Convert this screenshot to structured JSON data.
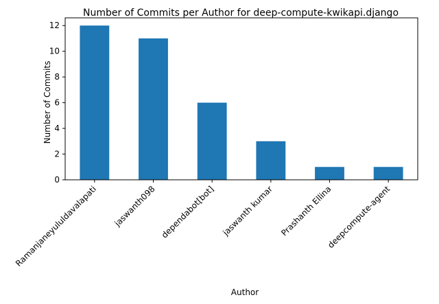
{
  "chart_data": {
    "type": "bar",
    "title": "Number of Commits per Author for deep-compute-kwikapi.django",
    "xlabel": "Author",
    "ylabel": "Number of Commits",
    "categories": [
      "Ramanjaneyululdavalapati",
      "jaswanth098",
      "dependabot[bot]",
      "jaswanth kumar",
      "Prashanth Ellina",
      "deepcompute-agent"
    ],
    "values": [
      12,
      11,
      6,
      3,
      1,
      1
    ],
    "ylim": [
      0,
      12.6
    ],
    "yticks": [
      0,
      2,
      4,
      6,
      8,
      10,
      12
    ],
    "bar_color": "#1f77b4",
    "grid": false,
    "legend": false
  }
}
